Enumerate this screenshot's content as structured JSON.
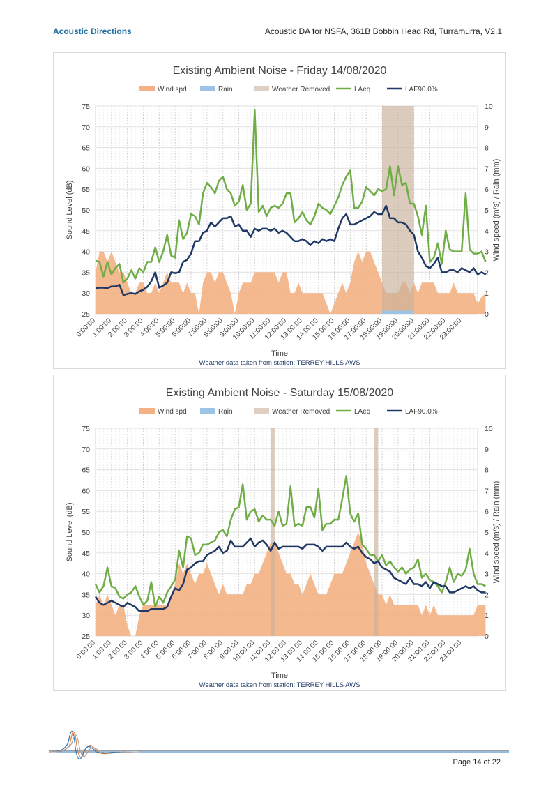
{
  "header": {
    "company": "Acoustic Directions",
    "doc_title": "Acoustic DA for NSFA, 361B Bobbin Head Rd, Turramurra, V2.1"
  },
  "footer": {
    "page": "Page 14 of 22"
  },
  "colors": {
    "wind": "#f4b183",
    "rain": "#9dc3e6",
    "removed": "#c9b09a",
    "laeq": "#70ad47",
    "laf90": "#1f3864"
  },
  "chart_data": [
    {
      "type": "line",
      "title": "Existing Ambient Noise - Friday 14/08/2020",
      "xlabel": "Time",
      "ylabel": "Sound Level (dB)",
      "y2label": "Wind speed (m/s) / Rain (mm)",
      "note": "Weather data taken from station: TERREY HILLS AWS",
      "legend": [
        "Wind spd",
        "Rain",
        "Weather Removed",
        "LAeq",
        "LAF90.0%"
      ],
      "ylim": [
        25,
        75
      ],
      "y2lim": [
        0,
        10
      ],
      "yticks": [
        "25",
        "30",
        "35",
        "40",
        "45",
        "50",
        "55",
        "60",
        "65",
        "70",
        "75"
      ],
      "y2ticks": [
        "0",
        "1",
        "2",
        "3",
        "4",
        "5",
        "6",
        "7",
        "8",
        "9",
        "10"
      ],
      "xticks": [
        "0:00:00",
        "1:00:00",
        "2:00:00",
        "3:00:00",
        "4:00:00",
        "5:00:00",
        "6:00:00",
        "7:00:00",
        "8:00:00",
        "9:00:00",
        "10:00:00",
        "11:00:00",
        "12:00:00",
        "13:00:00",
        "14:00:00",
        "15:00:00",
        "16:00:00",
        "17:00:00",
        "18:00:00",
        "19:00:00",
        "20:00:00",
        "21:00:00",
        "22:00:00",
        "23:00:00"
      ],
      "interval_minutes": 15,
      "removed_hours": [
        [
          18.0,
          20.0
        ]
      ],
      "rain_hours": [
        [
          18.0,
          20.0
        ]
      ],
      "laeq": [
        37.8,
        37.5,
        34.0,
        37.5,
        34.5,
        36.0,
        37.0,
        32.5,
        33.5,
        35.5,
        33.5,
        36.0,
        35.0,
        37.5,
        37.5,
        41.0,
        37.5,
        40.0,
        44.0,
        39.0,
        38.5,
        47.5,
        43.0,
        44.5,
        49.0,
        48.5,
        46.5,
        54.0,
        56.5,
        55.5,
        54.0,
        57.0,
        58.0,
        55.0,
        54.0,
        51.0,
        52.0,
        56.0,
        50.0,
        51.5,
        74.0,
        49.5,
        51.0,
        48.5,
        50.5,
        51.0,
        50.5,
        51.5,
        54.0,
        54.0,
        47.0,
        48.0,
        49.5,
        47.5,
        46.5,
        48.5,
        51.5,
        50.5,
        50.0,
        49.0,
        51.0,
        53.0,
        56.0,
        58.0,
        59.5,
        50.5,
        50.5,
        52.0,
        55.5,
        54.5,
        53.5,
        55.0,
        54.5,
        55.0,
        60.5,
        53.5,
        60.5,
        56.0,
        56.5,
        51.5,
        51.5,
        48.5,
        44.0,
        51.0,
        37.5,
        38.5,
        42.0,
        37.0,
        45.0,
        40.5,
        40.0,
        40.0,
        40.0,
        54.0,
        40.5,
        39.5,
        39.5,
        40.0,
        37.5
      ],
      "laf90": [
        31.2,
        31.3,
        31.3,
        31.2,
        31.6,
        31.6,
        32.0,
        29.5,
        29.8,
        30.0,
        29.8,
        30.4,
        30.8,
        31.5,
        32.8,
        35.0,
        31.3,
        31.8,
        32.5,
        35.0,
        34.8,
        35.0,
        37.5,
        38.0,
        39.5,
        42.5,
        42.5,
        44.5,
        45.0,
        47.0,
        46.0,
        47.0,
        48.0,
        48.0,
        48.5,
        46.0,
        46.5,
        45.0,
        45.0,
        43.5,
        45.5,
        45.0,
        45.5,
        45.5,
        45.0,
        45.5,
        44.5,
        45.0,
        44.5,
        43.5,
        42.5,
        42.5,
        43.0,
        42.5,
        41.5,
        42.5,
        42.0,
        43.0,
        42.5,
        43.0,
        42.5,
        45.5,
        48.0,
        49.0,
        46.5,
        46.5,
        47.0,
        47.5,
        48.0,
        48.5,
        49.5,
        49.0,
        49.0,
        51.0,
        48.0,
        48.0,
        47.0,
        47.0,
        46.5,
        45.0,
        44.0,
        40.0,
        38.5,
        36.5,
        36.0,
        37.0,
        38.5,
        35.0,
        35.0,
        35.5,
        35.5,
        35.0,
        36.0,
        35.5,
        35.0,
        36.0,
        34.5,
        35.0,
        34.5
      ],
      "wind": [
        2.0,
        3.0,
        3.0,
        2.5,
        3.0,
        2.5,
        2.0,
        2.0,
        1.5,
        1.0,
        1.0,
        1.5,
        1.5,
        1.0,
        1.0,
        1.5,
        1.0,
        1.5,
        2.0,
        1.5,
        1.5,
        1.5,
        1.0,
        1.5,
        1.0,
        1.0,
        0.0,
        1.5,
        2.0,
        2.0,
        1.5,
        2.0,
        2.0,
        1.5,
        1.0,
        0.0,
        1.0,
        1.5,
        1.5,
        1.5,
        2.0,
        2.0,
        2.0,
        2.0,
        2.0,
        2.0,
        1.5,
        2.0,
        2.0,
        1.0,
        1.0,
        1.5,
        1.0,
        1.0,
        1.0,
        1.0,
        1.0,
        1.0,
        0.5,
        0.0,
        0.5,
        1.0,
        1.5,
        1.0,
        1.5,
        2.5,
        3.0,
        2.5,
        3.0,
        3.0,
        2.5,
        2.0,
        1.5,
        1.0,
        1.0,
        1.0,
        1.0,
        1.5,
        1.5,
        1.0,
        1.5,
        1.0,
        1.5,
        1.5,
        1.5,
        1.5,
        1.0,
        1.0,
        1.0,
        1.0,
        1.5,
        1.0,
        1.0,
        1.0,
        1.0,
        1.0,
        0.5,
        0.8,
        1.0
      ]
    },
    {
      "type": "line",
      "title": "Existing Ambient Noise - Saturday 15/08/2020",
      "xlabel": "Time",
      "ylabel": "Sound Level (dB)",
      "y2label": "Wind speed (m/s) / Rain (mm)",
      "note": "Weather data taken from station: TERREY HILLS AWS",
      "legend": [
        "Wind spd",
        "Rain",
        "Weather Removed",
        "LAeq",
        "LAF90.0%"
      ],
      "ylim": [
        25,
        75
      ],
      "y2lim": [
        0,
        10
      ],
      "yticks": [
        "25",
        "30",
        "35",
        "40",
        "45",
        "50",
        "55",
        "60",
        "65",
        "70",
        "75"
      ],
      "y2ticks": [
        "0",
        "1",
        "2",
        "3",
        "4",
        "5",
        "6",
        "7",
        "8",
        "9",
        "10"
      ],
      "xticks": [
        "0:00:00",
        "1:00:00",
        "2:00:00",
        "3:00:00",
        "4:00:00",
        "5:00:00",
        "6:00:00",
        "7:00:00",
        "8:00:00",
        "9:00:00",
        "10:00:00",
        "11:00:00",
        "12:00:00",
        "13:00:00",
        "14:00:00",
        "15:00:00",
        "16:00:00",
        "17:00:00",
        "18:00:00",
        "19:00:00",
        "20:00:00",
        "21:00:00",
        "22:00:00",
        "23:00:00"
      ],
      "interval_minutes": 15,
      "removed_hours": [
        [
          11.0,
          11.25
        ],
        [
          17.5,
          17.75
        ]
      ],
      "rain_hours": [],
      "laeq": [
        37.5,
        35.5,
        37.0,
        41.5,
        37.0,
        36.5,
        34.5,
        34.0,
        35.0,
        35.5,
        37.0,
        34.5,
        32.5,
        33.5,
        38.0,
        32.0,
        34.5,
        33.0,
        35.5,
        37.0,
        38.5,
        45.5,
        41.5,
        49.0,
        48.5,
        44.5,
        45.0,
        47.0,
        47.0,
        47.5,
        48.0,
        50.0,
        50.5,
        49.0,
        53.0,
        55.5,
        56.0,
        61.5,
        53.0,
        55.0,
        55.5,
        52.5,
        54.0,
        53.0,
        53.0,
        51.5,
        55.0,
        51.5,
        52.0,
        61.0,
        51.5,
        52.0,
        51.5,
        56.0,
        56.0,
        53.5,
        60.5,
        50.5,
        52.0,
        52.0,
        53.0,
        53.0,
        58.0,
        63.5,
        54.5,
        52.5,
        54.5,
        47.0,
        46.0,
        44.5,
        44.5,
        43.0,
        44.5,
        42.0,
        43.0,
        41.5,
        40.5,
        41.5,
        40.0,
        41.0,
        41.5,
        43.5,
        39.0,
        40.0,
        38.5,
        38.0,
        37.0,
        35.5,
        38.0,
        41.5,
        38.0,
        40.0,
        39.5,
        41.0,
        46.0,
        40.0,
        37.5,
        37.5,
        37.0
      ],
      "laf90": [
        34.5,
        33.0,
        32.5,
        33.0,
        33.5,
        33.0,
        32.5,
        32.0,
        33.0,
        32.5,
        32.0,
        31.0,
        31.0,
        31.0,
        31.5,
        31.5,
        31.5,
        31.5,
        32.0,
        34.5,
        36.5,
        36.0,
        37.5,
        41.0,
        41.5,
        42.5,
        43.0,
        43.0,
        44.5,
        45.0,
        45.5,
        46.5,
        45.0,
        45.5,
        48.0,
        46.5,
        46.5,
        46.5,
        47.5,
        48.5,
        46.5,
        47.5,
        48.0,
        47.0,
        45.5,
        47.5,
        46.0,
        46.5,
        46.5,
        46.5,
        46.5,
        46.5,
        46.0,
        47.0,
        47.0,
        47.0,
        46.5,
        45.5,
        46.5,
        46.5,
        46.5,
        46.5,
        46.5,
        47.5,
        46.5,
        46.0,
        46.5,
        45.0,
        44.0,
        43.5,
        42.5,
        43.0,
        41.5,
        41.0,
        40.5,
        39.0,
        38.5,
        38.0,
        37.5,
        39.0,
        37.5,
        37.5,
        37.0,
        38.0,
        36.5,
        38.0,
        37.5,
        37.0,
        37.0,
        35.5,
        35.5,
        36.0,
        36.5,
        37.0,
        36.5,
        37.0,
        36.0,
        35.5,
        35.5
      ],
      "wind": [
        1.5,
        2.0,
        1.5,
        2.0,
        1.5,
        1.0,
        1.5,
        1.5,
        0.5,
        0.0,
        0.0,
        1.0,
        1.5,
        1.5,
        1.5,
        1.5,
        1.5,
        1.5,
        1.5,
        2.0,
        2.5,
        3.5,
        3.0,
        3.5,
        3.0,
        2.5,
        3.0,
        3.0,
        3.5,
        3.0,
        2.5,
        2.0,
        2.5,
        2.0,
        2.0,
        2.0,
        2.0,
        2.0,
        2.5,
        2.5,
        3.0,
        3.0,
        3.5,
        4.0,
        4.5,
        4.5,
        4.0,
        3.5,
        3.0,
        3.0,
        2.5,
        2.5,
        2.0,
        2.5,
        3.0,
        2.5,
        2.0,
        2.0,
        2.0,
        2.5,
        3.0,
        3.0,
        3.0,
        3.5,
        4.0,
        4.5,
        5.0,
        4.5,
        3.5,
        3.0,
        2.5,
        2.0,
        2.0,
        1.5,
        2.0,
        1.5,
        1.5,
        1.5,
        1.5,
        1.5,
        1.5,
        1.5,
        1.0,
        1.5,
        1.0,
        1.5,
        1.0,
        1.0,
        1.0,
        1.0,
        1.0,
        1.0,
        1.0,
        1.0,
        1.0,
        1.0,
        1.5,
        1.5,
        1.5
      ]
    }
  ]
}
